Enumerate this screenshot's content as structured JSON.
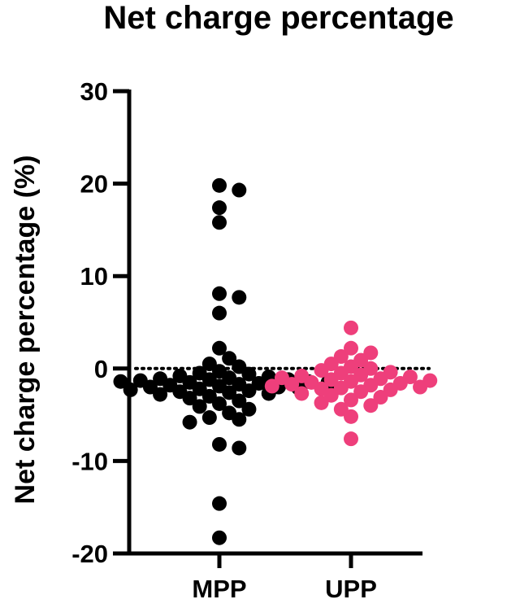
{
  "chart_data": {
    "type": "scatter",
    "title": "Net charge percentage",
    "xlabel": "",
    "ylabel": "Net charge percentage (%)",
    "ylim": [
      -20,
      30
    ],
    "yticks": [
      "30",
      "20",
      "10",
      "0",
      "-10",
      "-20"
    ],
    "categories": [
      "MPP",
      "UPP"
    ],
    "reference_line": {
      "y": 0,
      "style": "dotted"
    },
    "colors": {
      "MPP": "#000000",
      "UPP": "#ee3f7b"
    },
    "series": [
      {
        "name": "MPP",
        "values": [
          19.8,
          19.3,
          17.4,
          15.8,
          8.1,
          7.7,
          6.0,
          2.2,
          1.1,
          0.5,
          0.2,
          -0.3,
          -0.5,
          -0.6,
          -0.8,
          -0.9,
          -1.0,
          -1.1,
          -1.2,
          -1.2,
          -1.3,
          -1.4,
          -1.4,
          -1.5,
          -1.5,
          -1.6,
          -1.6,
          -1.7,
          -1.7,
          -1.8,
          -1.8,
          -1.9,
          -2.0,
          -2.0,
          -2.1,
          -2.2,
          -2.3,
          -2.4,
          -2.5,
          -2.6,
          -2.7,
          -2.8,
          -3.0,
          -3.2,
          -3.5,
          -3.8,
          -4.1,
          -4.4,
          -4.8,
          -5.3,
          -5.5,
          -5.8,
          -8.2,
          -8.6,
          -14.6,
          -18.3
        ]
      },
      {
        "name": "UPP",
        "values": [
          4.4,
          2.2,
          1.7,
          1.3,
          0.9,
          0.5,
          0.2,
          0.0,
          -0.2,
          -0.4,
          -0.5,
          -0.7,
          -0.8,
          -0.9,
          -1.0,
          -1.1,
          -1.2,
          -1.3,
          -1.4,
          -1.5,
          -1.6,
          -1.7,
          -1.8,
          -1.9,
          -2.0,
          -2.1,
          -2.2,
          -2.3,
          -2.5,
          -2.7,
          -2.9,
          -3.1,
          -3.4,
          -3.7,
          -4.0,
          -4.4,
          -5.2,
          -7.6
        ]
      }
    ]
  }
}
